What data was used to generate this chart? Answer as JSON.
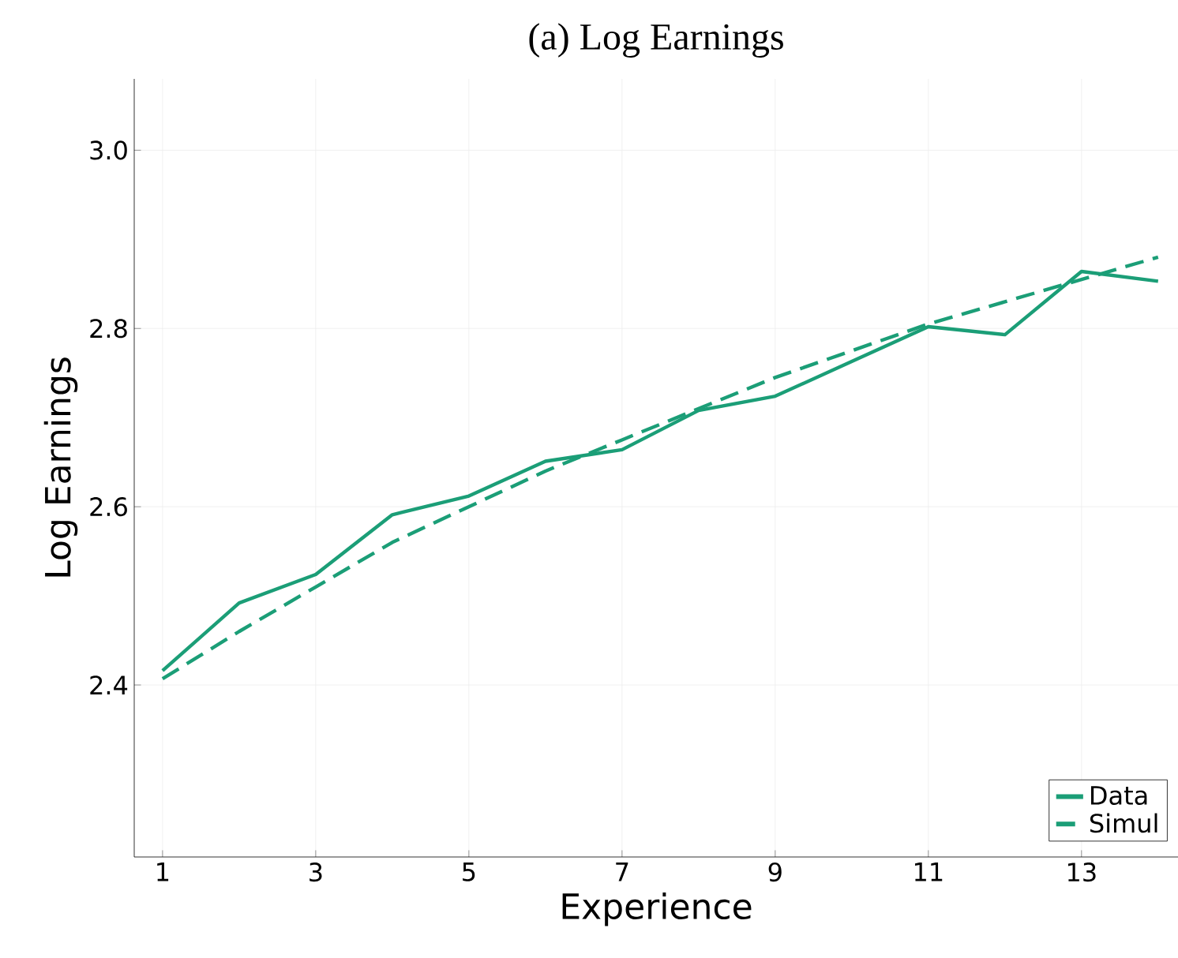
{
  "chart_data": {
    "type": "line",
    "title": "(a) Log Earnings",
    "xlabel": "Experience",
    "ylabel": "Log Earnings",
    "x": [
      1,
      2,
      3,
      4,
      5,
      6,
      7,
      8,
      9,
      10,
      11,
      12,
      13,
      14
    ],
    "series": [
      {
        "name": "Data",
        "color": "#1b9e77",
        "line_style": "solid",
        "values": [
          2.416,
          2.492,
          2.524,
          2.591,
          2.612,
          2.651,
          2.664,
          2.708,
          2.724,
          2.763,
          2.802,
          2.793,
          2.864,
          2.853
        ]
      },
      {
        "name": "Simul",
        "color": "#1b9e77",
        "line_style": "dashed",
        "values": [
          2.407,
          2.46,
          2.51,
          2.56,
          2.6,
          2.64,
          2.675,
          2.71,
          2.745,
          2.775,
          2.805,
          2.83,
          2.855,
          2.88
        ]
      }
    ],
    "xlim": [
      0.63,
      14.26
    ],
    "ylim": [
      2.207,
      3.08
    ],
    "xticks": [
      1,
      3,
      5,
      7,
      9,
      11,
      13
    ],
    "yticks": [
      2.4,
      2.6,
      2.8,
      {
        "value": 3,
        "label": "3.0"
      }
    ],
    "grid": true,
    "legend": "bottom right",
    "marker": "none"
  }
}
